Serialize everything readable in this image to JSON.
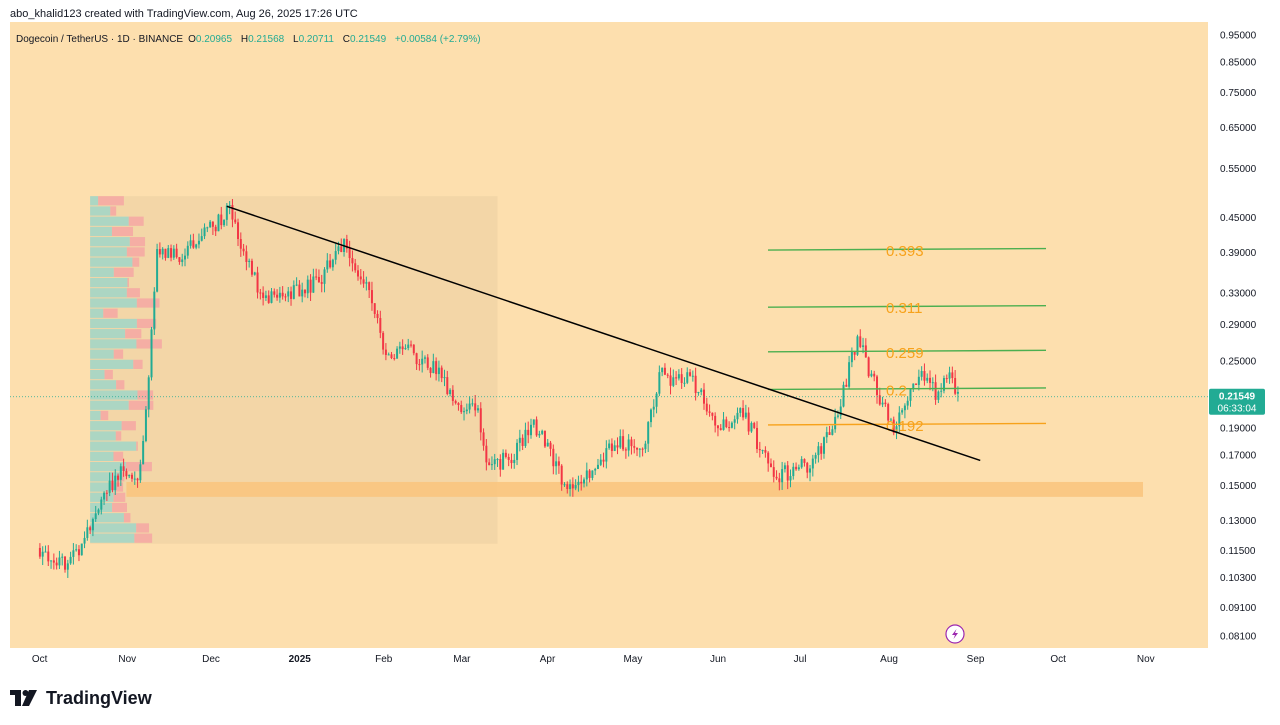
{
  "header": {
    "credit": "abo_khalid123 created with TradingView.com, Aug 26, 2025 17:26 UTC"
  },
  "symbol_bar": {
    "symbol": "Dogecoin / TetherUS · 1D · BINANCE",
    "open_label": "O",
    "open": "0.20965",
    "high_label": "H",
    "high": "0.21568",
    "low_label": "L",
    "low": "0.20711",
    "close_label": "C",
    "close": "0.21549",
    "change": "+0.00584 (+2.79%)"
  },
  "price_badge": {
    "price": "0.21549",
    "countdown": "06:33:04"
  },
  "footer": {
    "brand": "TradingView"
  },
  "colors": {
    "background": "#fddfae",
    "up": "#22ab94",
    "down": "#f23645",
    "level_green": "#4caf50",
    "level_orange": "#f7a21b",
    "support_zone": "#f9c57f",
    "trendline": "#000000",
    "badge": "#22ab94"
  },
  "chart_data": {
    "type": "candlestick",
    "symbol": "DOGEUSDT",
    "interval": "1D",
    "y_scale": "log",
    "ylim": [
      0.077,
      1.0
    ],
    "y_ticks": [
      "0.95000",
      "0.85000",
      "0.75000",
      "0.65000",
      "0.55000",
      "0.45000",
      "0.39000",
      "0.33000",
      "0.29000",
      "0.25000",
      "0.21549",
      "0.19000",
      "0.17000",
      "0.15000",
      "0.13000",
      "0.11500",
      "0.10300",
      "0.09100",
      "0.08100"
    ],
    "x_ticks": [
      "Oct",
      "Nov",
      "Dec",
      "2025",
      "Feb",
      "Mar",
      "Apr",
      "May",
      "Jun",
      "Jul",
      "Aug",
      "Sep",
      "Oct",
      "Nov"
    ],
    "price_anchors": [
      {
        "date": "2024-10-01",
        "price": 0.116
      },
      {
        "date": "2024-10-07",
        "price": 0.108
      },
      {
        "date": "2024-10-14",
        "price": 0.112
      },
      {
        "date": "2024-10-22",
        "price": 0.14
      },
      {
        "date": "2024-10-30",
        "price": 0.16
      },
      {
        "date": "2024-11-05",
        "price": 0.15
      },
      {
        "date": "2024-11-08",
        "price": 0.2
      },
      {
        "date": "2024-11-12",
        "price": 0.39
      },
      {
        "date": "2024-11-20",
        "price": 0.38
      },
      {
        "date": "2024-12-01",
        "price": 0.43
      },
      {
        "date": "2024-12-08",
        "price": 0.46
      },
      {
        "date": "2024-12-12",
        "price": 0.4
      },
      {
        "date": "2024-12-20",
        "price": 0.32
      },
      {
        "date": "2025-01-01",
        "price": 0.33
      },
      {
        "date": "2025-01-10",
        "price": 0.35
      },
      {
        "date": "2025-01-18",
        "price": 0.41
      },
      {
        "date": "2025-01-26",
        "price": 0.34
      },
      {
        "date": "2025-02-02",
        "price": 0.26
      },
      {
        "date": "2025-02-10",
        "price": 0.26
      },
      {
        "date": "2025-02-20",
        "price": 0.24
      },
      {
        "date": "2025-03-01",
        "price": 0.2
      },
      {
        "date": "2025-03-06",
        "price": 0.21
      },
      {
        "date": "2025-03-11",
        "price": 0.16
      },
      {
        "date": "2025-03-20",
        "price": 0.17
      },
      {
        "date": "2025-03-27",
        "price": 0.195
      },
      {
        "date": "2025-04-07",
        "price": 0.15
      },
      {
        "date": "2025-04-15",
        "price": 0.155
      },
      {
        "date": "2025-04-25",
        "price": 0.18
      },
      {
        "date": "2025-05-05",
        "price": 0.175
      },
      {
        "date": "2025-05-11",
        "price": 0.235
      },
      {
        "date": "2025-05-23",
        "price": 0.23
      },
      {
        "date": "2025-06-01",
        "price": 0.19
      },
      {
        "date": "2025-06-10",
        "price": 0.2
      },
      {
        "date": "2025-06-22",
        "price": 0.155
      },
      {
        "date": "2025-07-05",
        "price": 0.165
      },
      {
        "date": "2025-07-14",
        "price": 0.2
      },
      {
        "date": "2025-07-21",
        "price": 0.275
      },
      {
        "date": "2025-07-28",
        "price": 0.22
      },
      {
        "date": "2025-08-03",
        "price": 0.19
      },
      {
        "date": "2025-08-13",
        "price": 0.24
      },
      {
        "date": "2025-08-19",
        "price": 0.215
      },
      {
        "date": "2025-08-23",
        "price": 0.235
      },
      {
        "date": "2025-08-26",
        "price": 0.21549
      }
    ],
    "levels": [
      {
        "label": "0.393",
        "value": 0.393,
        "color": "green"
      },
      {
        "label": "0.311",
        "value": 0.311,
        "color": "green"
      },
      {
        "label": "0.259",
        "value": 0.259,
        "color": "green"
      },
      {
        "label": "0.2",
        "value": 0.222,
        "color": "green"
      },
      {
        "label": "0.192",
        "value": 0.192,
        "color": "orange"
      }
    ],
    "support_zone": [
      0.143,
      0.152
    ],
    "trendline": [
      {
        "date": "2024-12-07",
        "price": 0.47
      },
      {
        "date": "2025-09-03",
        "price": 0.166
      }
    ],
    "last_price": 0.21549
  }
}
